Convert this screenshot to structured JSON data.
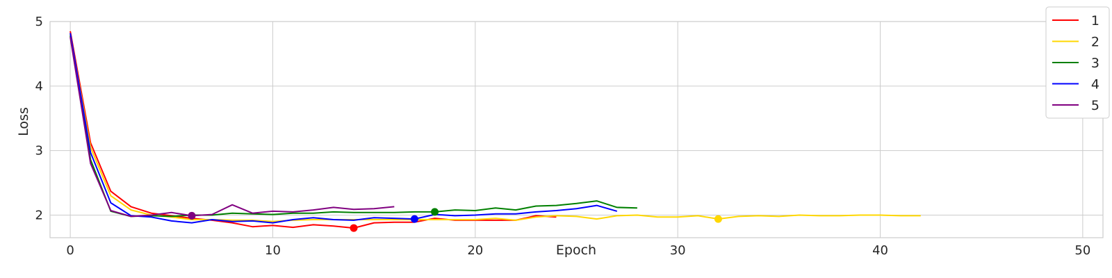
{
  "chart_data": {
    "type": "line",
    "title": "",
    "xlabel": "Epoch",
    "ylabel": "Loss",
    "xlim": [
      -1,
      51
    ],
    "ylim": [
      1.65,
      5.0
    ],
    "xticks": [
      0,
      10,
      20,
      30,
      40,
      50
    ],
    "yticks": [
      2,
      3,
      4,
      5
    ],
    "grid": true,
    "legend_position": "top-right",
    "series": [
      {
        "name": "1",
        "color": "#ff0000",
        "x": [
          0,
          1,
          2,
          3,
          4,
          5,
          6,
          7,
          8,
          9,
          10,
          11,
          12,
          13,
          14,
          15,
          16,
          17,
          18,
          19,
          20,
          21,
          22,
          23,
          24
        ],
        "y": [
          4.85,
          3.12,
          2.37,
          2.13,
          2.03,
          1.99,
          1.95,
          1.92,
          1.88,
          1.82,
          1.84,
          1.81,
          1.85,
          1.83,
          1.8,
          1.88,
          1.89,
          1.89,
          1.95,
          1.92,
          1.92,
          1.92,
          1.92,
          1.99,
          1.97
        ],
        "marker": {
          "x": 14,
          "y": 1.8
        }
      },
      {
        "name": "2",
        "color": "#ffd700",
        "x": [
          0,
          1,
          2,
          3,
          4,
          5,
          6,
          7,
          8,
          9,
          10,
          11,
          12,
          13,
          14,
          15,
          16,
          17,
          18,
          19,
          20,
          21,
          22,
          23,
          24,
          25,
          26,
          27,
          28,
          29,
          30,
          31,
          32,
          33,
          34,
          35,
          36,
          37,
          38,
          39,
          40,
          41,
          42
        ],
        "y": [
          4.8,
          3.05,
          2.3,
          2.08,
          2.0,
          1.97,
          1.93,
          1.93,
          1.92,
          1.92,
          1.9,
          1.92,
          1.93,
          1.93,
          1.93,
          1.93,
          1.93,
          1.93,
          1.93,
          1.93,
          1.93,
          1.95,
          1.92,
          1.97,
          1.99,
          1.98,
          1.94,
          1.99,
          2.0,
          1.97,
          1.97,
          1.99,
          1.94,
          1.98,
          1.99,
          1.98,
          2.0,
          1.99,
          1.99,
          2.0,
          2.0,
          1.99,
          1.99
        ],
        "marker": {
          "x": 32,
          "y": 1.94
        }
      },
      {
        "name": "3",
        "color": "#008000",
        "x": [
          0,
          1,
          2,
          3,
          4,
          5,
          6,
          7,
          8,
          9,
          10,
          11,
          12,
          13,
          14,
          15,
          16,
          17,
          18,
          19,
          20,
          21,
          22,
          23,
          24,
          25,
          26,
          27,
          28
        ],
        "y": [
          4.78,
          2.86,
          2.06,
          1.98,
          1.99,
          1.98,
          2.0,
          2.0,
          2.03,
          2.02,
          2.01,
          2.03,
          2.03,
          2.05,
          2.04,
          2.04,
          2.04,
          2.05,
          2.05,
          2.08,
          2.07,
          2.11,
          2.08,
          2.14,
          2.15,
          2.18,
          2.22,
          2.12,
          2.11
        ],
        "marker": {
          "x": 18,
          "y": 2.05
        }
      },
      {
        "name": "4",
        "color": "#0000ff",
        "x": [
          0,
          1,
          2,
          3,
          4,
          5,
          6,
          7,
          8,
          9,
          10,
          11,
          12,
          13,
          14,
          15,
          16,
          17,
          18,
          19,
          20,
          21,
          22,
          23,
          24,
          25,
          26,
          27
        ],
        "y": [
          4.82,
          2.97,
          2.19,
          1.99,
          1.97,
          1.91,
          1.88,
          1.93,
          1.9,
          1.91,
          1.88,
          1.93,
          1.96,
          1.93,
          1.92,
          1.96,
          1.95,
          1.94,
          2.01,
          1.99,
          2.0,
          2.02,
          2.02,
          2.05,
          2.07,
          2.1,
          2.15,
          2.06
        ],
        "marker": {
          "x": 17,
          "y": 1.94
        }
      },
      {
        "name": "5",
        "color": "#800080",
        "x": [
          0,
          1,
          2,
          3,
          4,
          5,
          6,
          7,
          8,
          9,
          10,
          11,
          12,
          13,
          14,
          15,
          16
        ],
        "y": [
          4.76,
          2.8,
          2.07,
          1.98,
          2.0,
          2.04,
          1.99,
          2.01,
          2.16,
          2.03,
          2.06,
          2.05,
          2.08,
          2.12,
          2.09,
          2.1,
          2.13
        ],
        "marker": {
          "x": 6,
          "y": 1.99
        }
      }
    ]
  }
}
